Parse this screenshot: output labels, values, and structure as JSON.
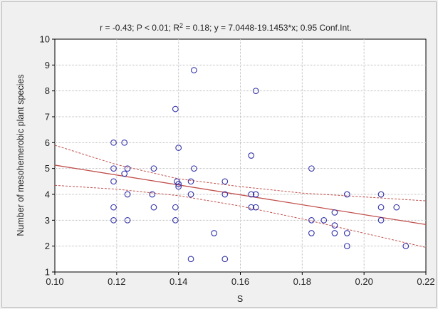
{
  "chart_data": {
    "type": "scatter",
    "title": "r = -0.43; P < 0.01; R",
    "title_sup": "2",
    "title_rest": " = 0.18; y = 7.0448-19.1453*x; 0.95 Conf.Int.",
    "xlabel": "S",
    "ylabel": "Number of mesohemerobic plant species",
    "xlim": [
      0.1,
      0.22
    ],
    "ylim": [
      1,
      10
    ],
    "x_ticks": [
      0.1,
      0.12,
      0.14,
      0.16,
      0.18,
      0.2,
      0.22
    ],
    "x_tick_labels": [
      "0.10",
      "0.12",
      "0.14",
      "0.16",
      "0.18",
      "0.20",
      "0.22"
    ],
    "y_ticks": [
      1,
      2,
      3,
      4,
      5,
      6,
      7,
      8,
      9,
      10
    ],
    "y_tick_labels": [
      "1",
      "2",
      "3",
      "4",
      "5",
      "6",
      "7",
      "8",
      "9",
      "10"
    ],
    "grid": true,
    "regression": {
      "intercept": 7.0448,
      "slope": -19.1453
    },
    "confidence": 0.95,
    "colors": {
      "points": "#3333aa",
      "fit_line": "#c0504d",
      "ci_line": "#c0504d",
      "grid": "#bfbfbf",
      "plot_bg": "#ffffff"
    },
    "points": [
      [
        0.119,
        6.0
      ],
      [
        0.119,
        5.0
      ],
      [
        0.119,
        4.5
      ],
      [
        0.119,
        3.5
      ],
      [
        0.119,
        3.0
      ],
      [
        0.1225,
        6.0
      ],
      [
        0.1225,
        4.8
      ],
      [
        0.1235,
        5.0
      ],
      [
        0.1235,
        4.0
      ],
      [
        0.1235,
        3.0
      ],
      [
        0.1315,
        4.0
      ],
      [
        0.132,
        5.0
      ],
      [
        0.132,
        3.5
      ],
      [
        0.139,
        7.3
      ],
      [
        0.139,
        3.5
      ],
      [
        0.139,
        3.0
      ],
      [
        0.1395,
        4.5
      ],
      [
        0.14,
        5.8
      ],
      [
        0.14,
        4.4
      ],
      [
        0.14,
        4.3
      ],
      [
        0.144,
        4.5
      ],
      [
        0.144,
        4.0
      ],
      [
        0.144,
        1.5
      ],
      [
        0.145,
        8.8
      ],
      [
        0.145,
        5.0
      ],
      [
        0.1515,
        2.5
      ],
      [
        0.155,
        4.5
      ],
      [
        0.155,
        4.0
      ],
      [
        0.155,
        1.5
      ],
      [
        0.1635,
        5.5
      ],
      [
        0.1635,
        4.0
      ],
      [
        0.1635,
        3.5
      ],
      [
        0.165,
        8.0
      ],
      [
        0.165,
        4.0
      ],
      [
        0.165,
        3.5
      ],
      [
        0.183,
        5.0
      ],
      [
        0.183,
        3.0
      ],
      [
        0.183,
        2.5
      ],
      [
        0.187,
        3.0
      ],
      [
        0.1905,
        3.3
      ],
      [
        0.1905,
        2.8
      ],
      [
        0.1905,
        2.5
      ],
      [
        0.1945,
        4.0
      ],
      [
        0.1945,
        2.5
      ],
      [
        0.1945,
        2.0
      ],
      [
        0.2055,
        4.0
      ],
      [
        0.2055,
        3.5
      ],
      [
        0.2055,
        3.0
      ],
      [
        0.2105,
        3.5
      ],
      [
        0.2135,
        2.0
      ]
    ],
    "ci_upper": [
      [
        0.1,
        5.9
      ],
      [
        0.12,
        5.15
      ],
      [
        0.14,
        4.6
      ],
      [
        0.16,
        4.3
      ],
      [
        0.18,
        4.05
      ],
      [
        0.2,
        3.9
      ],
      [
        0.22,
        3.75
      ]
    ],
    "ci_lower": [
      [
        0.1,
        4.35
      ],
      [
        0.12,
        4.2
      ],
      [
        0.14,
        3.95
      ],
      [
        0.16,
        3.55
      ],
      [
        0.18,
        3.05
      ],
      [
        0.2,
        2.5
      ],
      [
        0.22,
        1.95
      ]
    ]
  }
}
